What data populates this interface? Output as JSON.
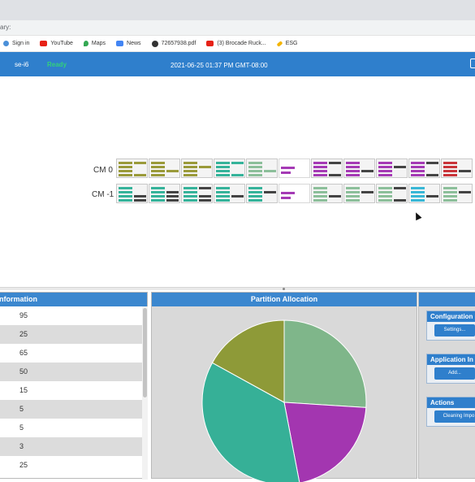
{
  "browser": {
    "address_fragment": "ary:",
    "bookmarks": [
      {
        "label": "Sign in",
        "icon": "signin-icon",
        "color": "#4a90d9"
      },
      {
        "label": "YouTube",
        "icon": "youtube-icon",
        "color": "#e62117"
      },
      {
        "label": "Maps",
        "icon": "maps-icon",
        "color": "#34a853"
      },
      {
        "label": "News",
        "icon": "news-icon",
        "color": "#4285f4"
      },
      {
        "label": "72657938.pdf",
        "icon": "globe-icon",
        "color": "#333333"
      },
      {
        "label": "(3) Brocade Ruck...",
        "icon": "youtube-icon",
        "color": "#e62117"
      },
      {
        "label": "ESG",
        "icon": "pencil-icon",
        "color": "#f4b400"
      }
    ]
  },
  "header": {
    "node": "se-i6",
    "status": "Ready",
    "timestamp": "2021-06-25 01:37 PM GMT-08:00"
  },
  "lanes": [
    {
      "label": "CM 0"
    },
    {
      "label": "CM -1"
    }
  ],
  "information": {
    "title": "nformation",
    "rows": [
      "95",
      "25",
      "65",
      "50",
      "15",
      "5",
      "5",
      "3",
      "25"
    ]
  },
  "partition": {
    "title": "Partition Allocation",
    "slices": [
      {
        "value": 26,
        "color": "#7fb68a"
      },
      {
        "value": 21,
        "color": "#a336b0"
      },
      {
        "value": 36,
        "color": "#36b097"
      },
      {
        "value": 17,
        "color": "#8e9a38"
      }
    ]
  },
  "side": {
    "groups": [
      {
        "title": "Configuration",
        "button": "Settings..."
      },
      {
        "title": "Application In",
        "button": "Add..."
      },
      {
        "title": "Actions",
        "button": "Cleaning Impo"
      }
    ]
  },
  "colors": {
    "accent": "#2f7fcc",
    "ready": "#33d17a"
  }
}
